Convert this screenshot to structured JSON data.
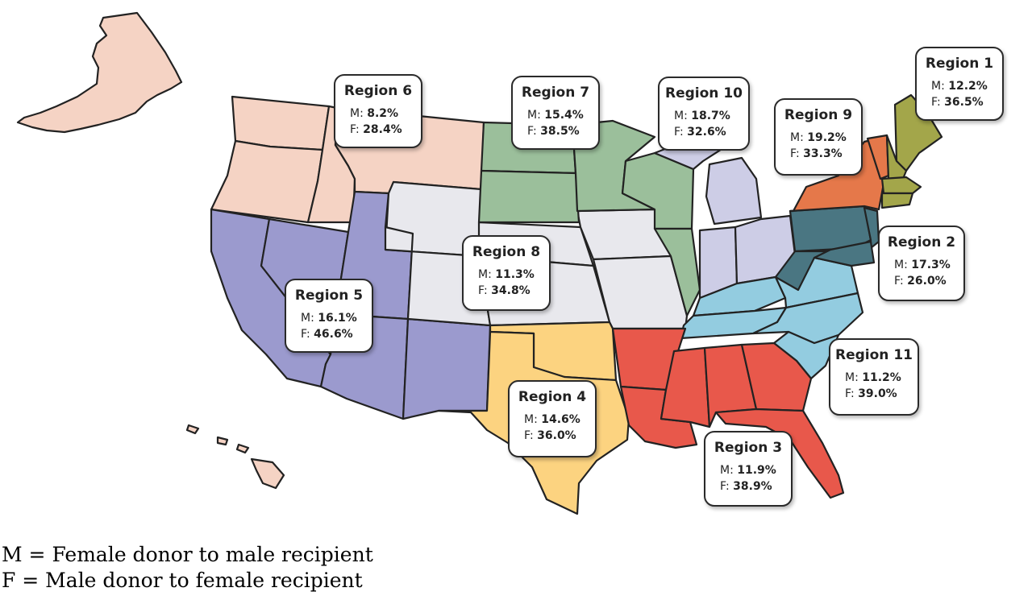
{
  "colors": {
    "region_1": "#a3a64a",
    "region_2": "#4a7682",
    "region_3": "#e8584b",
    "region_4": "#fcd380",
    "region_5": "#9b9ace",
    "region_6": "#f5d3c4",
    "region_7": "#9bbf9b",
    "region_8": "#e8e8ed",
    "region_9": "#e5784a",
    "region_10": "#cdcde6",
    "region_11": "#93cce0"
  },
  "regions": [
    {
      "id": "region_1",
      "title": "Region 1",
      "m_label": "M:",
      "m_value": "12.2%",
      "f_label": "F:",
      "f_value": "36.5%"
    },
    {
      "id": "region_2",
      "title": "Region 2",
      "m_label": "M:",
      "m_value": "17.3%",
      "f_label": "F:",
      "f_value": "26.0%"
    },
    {
      "id": "region_3",
      "title": "Region 3",
      "m_label": "M:",
      "m_value": "11.9%",
      "f_label": "F:",
      "f_value": "38.9%"
    },
    {
      "id": "region_4",
      "title": "Region 4",
      "m_label": "M:",
      "m_value": "14.6%",
      "f_label": "F:",
      "f_value": "36.0%"
    },
    {
      "id": "region_5",
      "title": "Region 5",
      "m_label": "M:",
      "m_value": "16.1%",
      "f_label": "F:",
      "f_value": "46.6%"
    },
    {
      "id": "region_6",
      "title": "Region 6",
      "m_label": "M:",
      "m_value": "8.2%",
      "f_label": "F:",
      "f_value": "28.4%"
    },
    {
      "id": "region_7",
      "title": "Region 7",
      "m_label": "M:",
      "m_value": "15.4%",
      "f_label": "F:",
      "f_value": "38.5%"
    },
    {
      "id": "region_8",
      "title": "Region 8",
      "m_label": "M:",
      "m_value": "11.3%",
      "f_label": "F:",
      "f_value": "34.8%"
    },
    {
      "id": "region_9",
      "title": "Region 9",
      "m_label": "M:",
      "m_value": "19.2%",
      "f_label": "F:",
      "f_value": "33.3%"
    },
    {
      "id": "region_10",
      "title": "Region 10",
      "m_label": "M:",
      "m_value": "18.7%",
      "f_label": "F:",
      "f_value": "32.6%"
    },
    {
      "id": "region_11",
      "title": "Region 11",
      "m_label": "M:",
      "m_value": "11.2%",
      "f_label": "F:",
      "f_value": "39.0%"
    }
  ],
  "legend": {
    "m_line": "M = Female donor to male recipient",
    "f_line": "F = Male donor to female recipient"
  }
}
